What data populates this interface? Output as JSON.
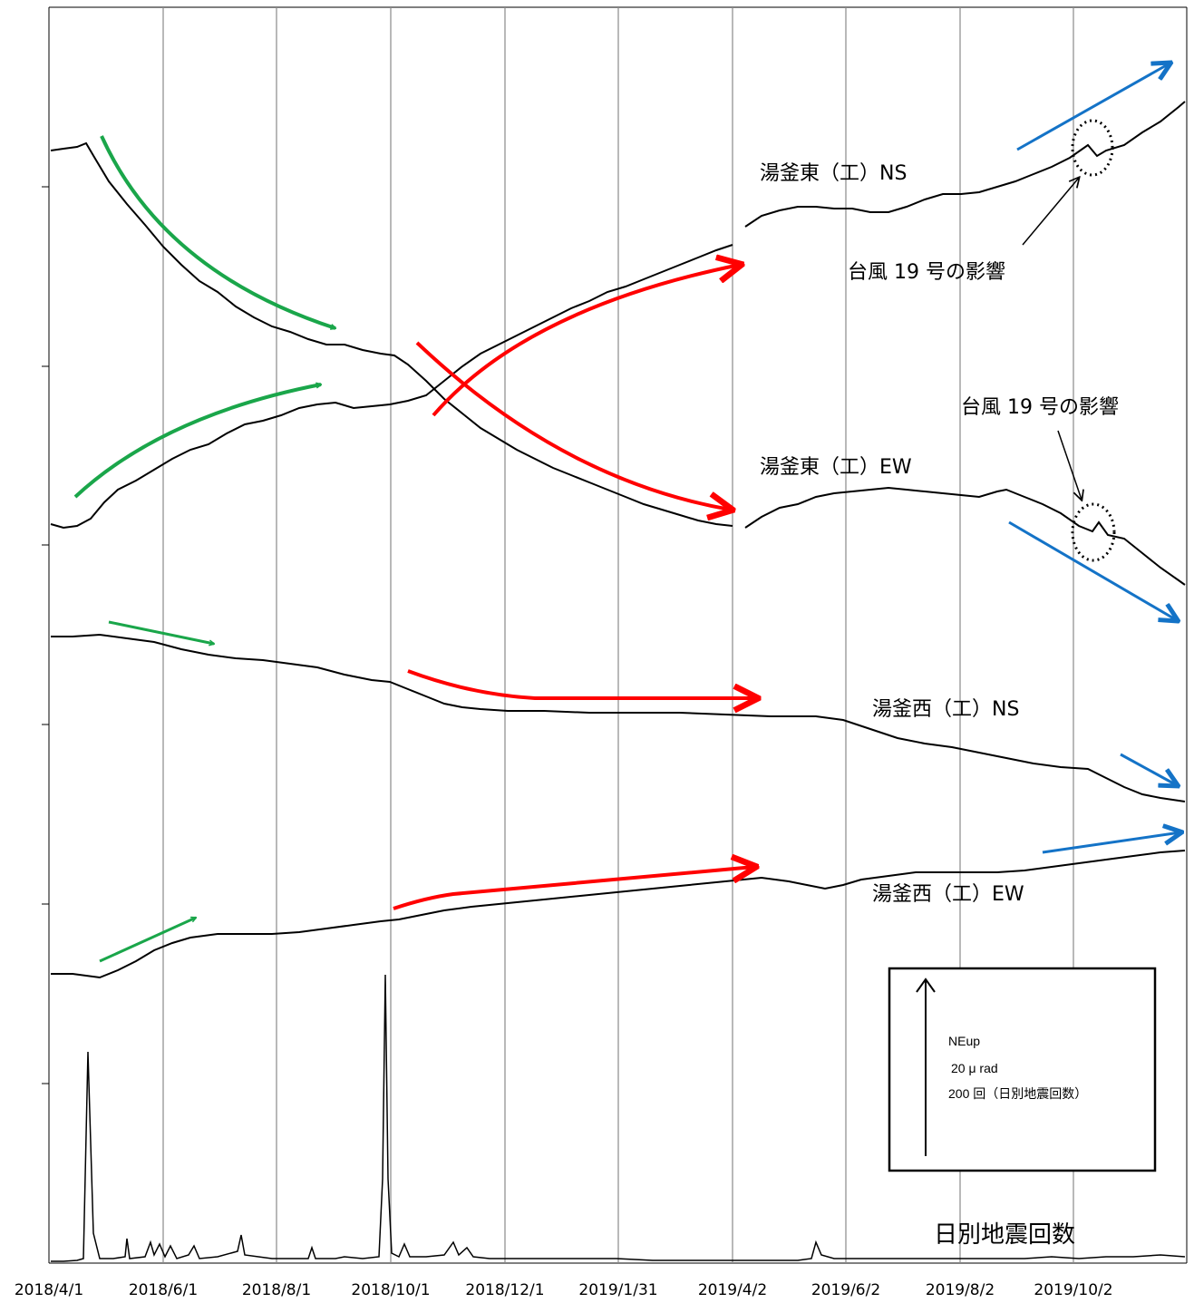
{
  "chart_data": {
    "type": "line",
    "title": "",
    "xlabel": "",
    "ylabel": "",
    "x_ticks": [
      "2018/4/1",
      "2018/6/1",
      "2018/8/1",
      "2018/10/1",
      "2018/12/1",
      "2019/1/31",
      "2019/4/2",
      "2019/6/2",
      "2019/8/2",
      "2019/10/2"
    ],
    "grid": "vertical lines at each date tick",
    "series": [
      {
        "name": "湯釜東（工）NS",
        "color": "#000000",
        "note": "tilt, stacked trace"
      },
      {
        "name": "湯釜東（工）EW",
        "color": "#000000",
        "note": "tilt, stacked trace"
      },
      {
        "name": "湯釜西（工）NS",
        "color": "#000000",
        "note": "tilt, stacked trace"
      },
      {
        "name": "湯釜西（工）EW",
        "color": "#000000",
        "note": "tilt, stacked trace"
      },
      {
        "name": "日別地震回数",
        "color": "#000000",
        "note": "daily earthquake count"
      }
    ],
    "annotations": [
      {
        "text": "台風 19 号の影響",
        "target": "湯釜東（工）NS"
      },
      {
        "text": "台風 19 号の影響",
        "target": "湯釜東（工）EW"
      }
    ],
    "trend_arrow_colors": {
      "phase1": "#1aa64a",
      "phase2": "#ff0000",
      "phase3": "#1473c7"
    },
    "scale_legend": {
      "direction": "NEup",
      "tilt_scale": "20 μ rad",
      "count_scale": "200 回（日別地震回数）"
    }
  },
  "labels": {
    "east_ns": "湯釜東（工）NS",
    "east_ew": "湯釜東（工）EW",
    "west_ns": "湯釜西（工）NS",
    "west_ew": "湯釜西（工）EW",
    "typhoon_1": "台風 19 号の影響",
    "typhoon_2": "台風 19 号の影響",
    "quake_count": "日別地震回数",
    "legend_dir": "NEup",
    "legend_tilt": "20 μ rad",
    "legend_count": "200 回（日別地震回数）"
  }
}
